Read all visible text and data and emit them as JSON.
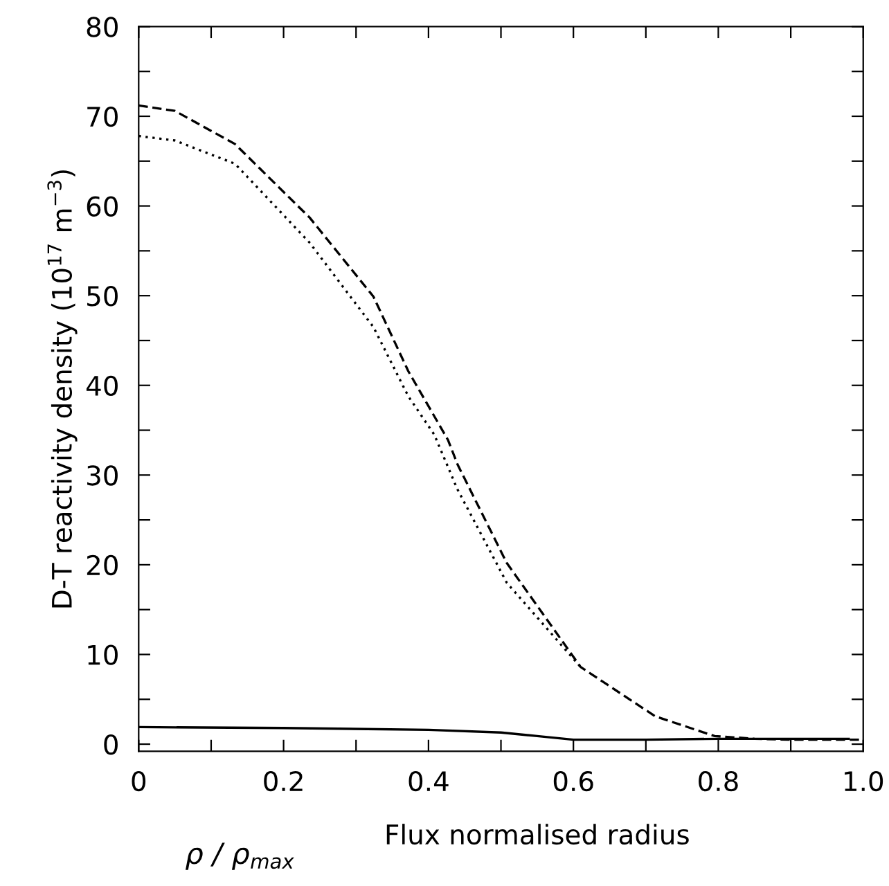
{
  "chart_data": {
    "type": "line",
    "xlabel": "Flux normalised radius",
    "ylabel": "D-T reactivity density (10$^{17}$ m$^{−3}$)",
    "annotations": [
      "ρ / ρ$_{max}$"
    ],
    "xlim": [
      0,
      1.0
    ],
    "ylim": [
      -0.8,
      80
    ],
    "xticks": [
      0,
      {
        "value": 0.1,
        "label": null
      },
      {
        "value": 0.2,
        "label": "0.2"
      },
      {
        "value": 0.3,
        "label": null
      },
      {
        "value": 0.4,
        "label": "0.4"
      },
      {
        "value": 0.5,
        "label": null
      },
      {
        "value": 0.6,
        "label": "0.6"
      },
      {
        "value": 0.7,
        "label": null
      },
      {
        "value": 0.8,
        "label": "0.8"
      },
      {
        "value": 0.9,
        "label": null
      },
      {
        "value": 1.0,
        "label": "1.0"
      }
    ],
    "yticks": [
      0,
      {
        "value": 5,
        "label": null
      },
      10,
      {
        "value": 15,
        "label": null
      },
      20,
      {
        "value": 25,
        "label": null
      },
      30,
      {
        "value": 35,
        "label": null
      },
      40,
      {
        "value": 45,
        "label": null
      },
      50,
      {
        "value": 55,
        "label": null
      },
      60,
      {
        "value": 65,
        "label": null
      },
      70,
      {
        "value": 75,
        "label": null
      },
      80
    ],
    "grid": false,
    "legend": false,
    "series": [
      {
        "color": "#000000",
        "line_style": "dashed",
        "x": [
          0.0,
          0.05,
          0.133,
          0.236,
          0.324,
          0.372,
          0.427,
          0.44,
          0.508,
          0.61,
          0.713,
          0.795,
          0.85,
          0.9,
          1.0
        ],
        "values": [
          71.2,
          70.6,
          66.9,
          58.7,
          49.9,
          41.6,
          33.9,
          31.2,
          20.2,
          8.6,
          3.1,
          0.9,
          0.6,
          0.5,
          0.5
        ]
      },
      {
        "color": "#000000",
        "line_style": "dotted",
        "x": [
          0.0,
          0.05,
          0.133,
          0.236,
          0.324,
          0.372,
          0.408,
          0.44,
          0.508,
          0.61
        ],
        "values": [
          67.8,
          67.3,
          64.7,
          55.9,
          46.5,
          38.8,
          34.5,
          28.4,
          18.0,
          8.6
        ]
      },
      {
        "color": "#000000",
        "line_style": "solid",
        "x": [
          0.0,
          0.2,
          0.4,
          0.5,
          0.55,
          0.6,
          0.7,
          0.8,
          0.9,
          0.98
        ],
        "values": [
          1.9,
          1.8,
          1.6,
          1.3,
          0.9,
          0.5,
          0.5,
          0.6,
          0.6,
          0.6
        ]
      }
    ]
  }
}
